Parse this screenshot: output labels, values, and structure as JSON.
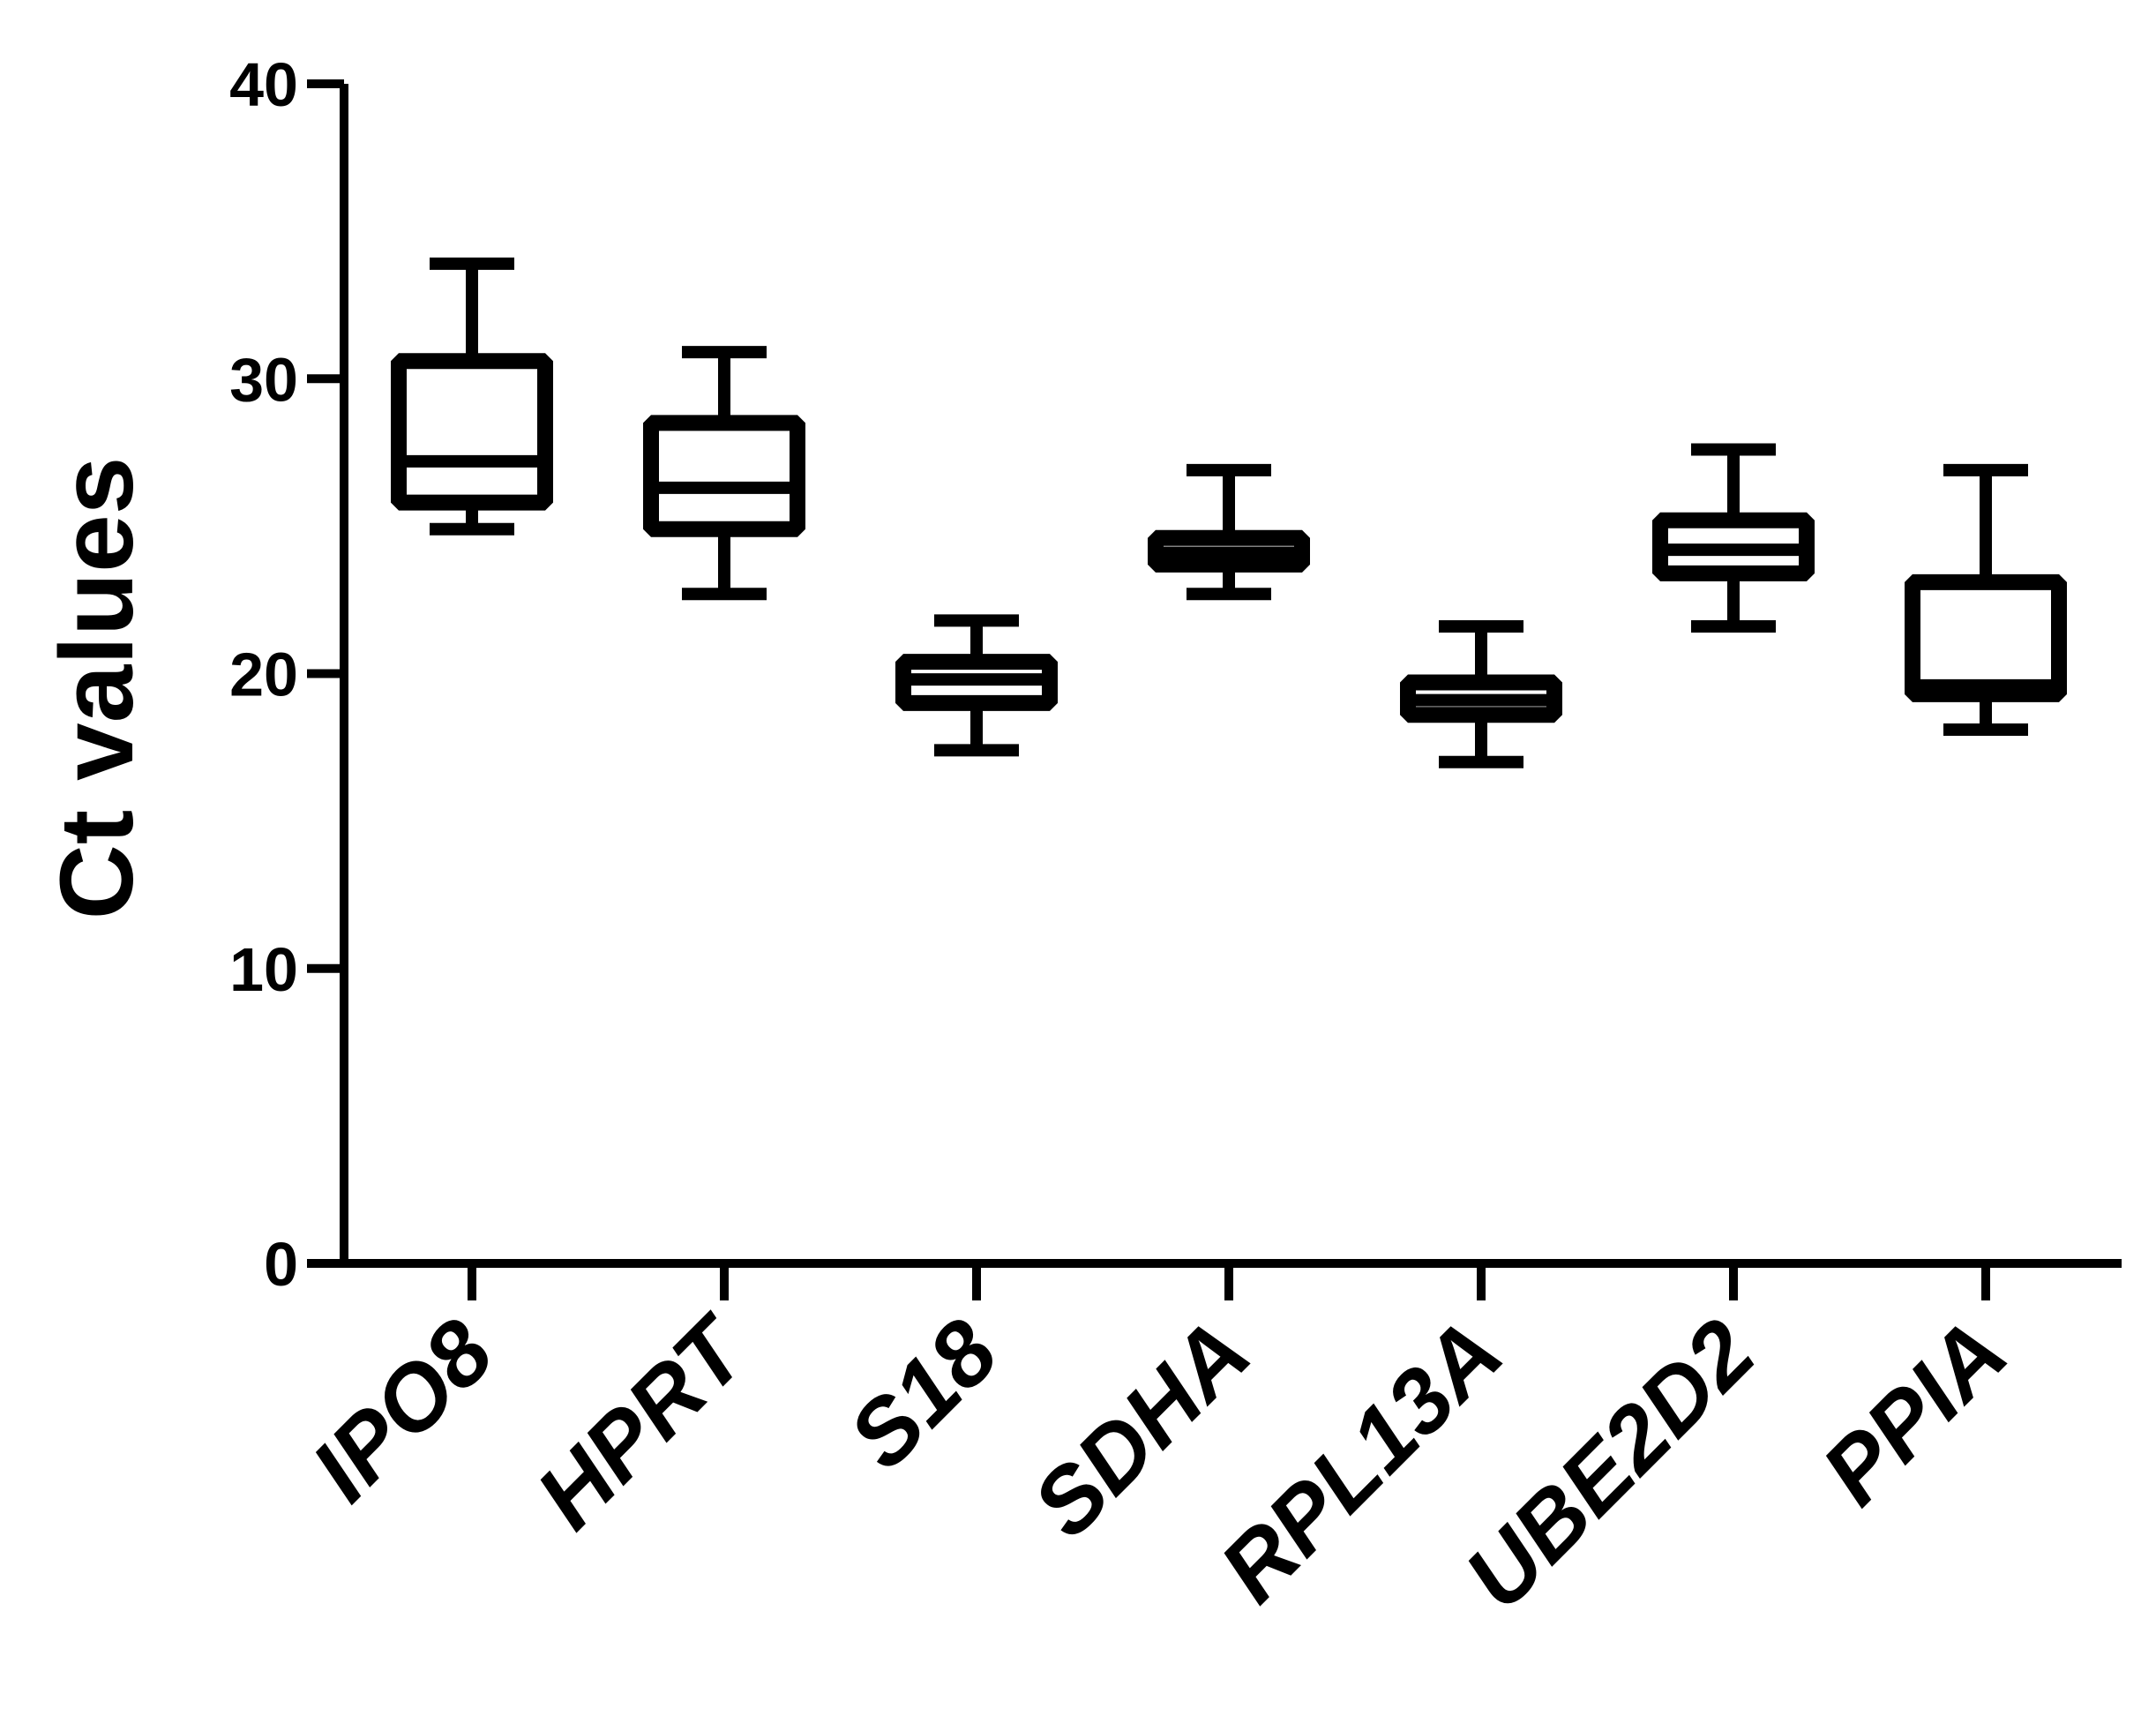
{
  "chart_data": {
    "type": "box",
    "title": "",
    "xlabel": "",
    "ylabel": "Ct values",
    "ylim": [
      0,
      40
    ],
    "y_ticks": [
      "0",
      "10",
      "20",
      "30",
      "40"
    ],
    "grid": false,
    "legend": "none",
    "colors": {
      "stroke": "#000000",
      "background": "#ffffff"
    },
    "categories": [
      "IPO8",
      "HPRT",
      "S18",
      "SDHA",
      "RPL13A",
      "UBE2D2",
      "PPIA"
    ],
    "boxes": [
      {
        "name": "IPO8",
        "min": 24.9,
        "q1": 25.8,
        "median": 27.2,
        "q3": 30.6,
        "max": 33.9
      },
      {
        "name": "HPRT",
        "min": 22.7,
        "q1": 24.9,
        "median": 26.3,
        "q3": 28.5,
        "max": 30.9
      },
      {
        "name": "S18",
        "min": 17.4,
        "q1": 19.0,
        "median": 19.8,
        "q3": 20.4,
        "max": 21.8
      },
      {
        "name": "SDHA",
        "min": 22.7,
        "q1": 23.7,
        "median": 24.1,
        "q3": 24.6,
        "max": 26.9
      },
      {
        "name": "RPL13A",
        "min": 17.0,
        "q1": 18.6,
        "median": 19.1,
        "q3": 19.7,
        "max": 21.6
      },
      {
        "name": "UBE2D2",
        "min": 21.6,
        "q1": 23.4,
        "median": 24.2,
        "q3": 25.2,
        "max": 27.6
      },
      {
        "name": "PPIA",
        "min": 18.1,
        "q1": 19.3,
        "median": 19.6,
        "q3": 23.1,
        "max": 26.9
      }
    ]
  }
}
